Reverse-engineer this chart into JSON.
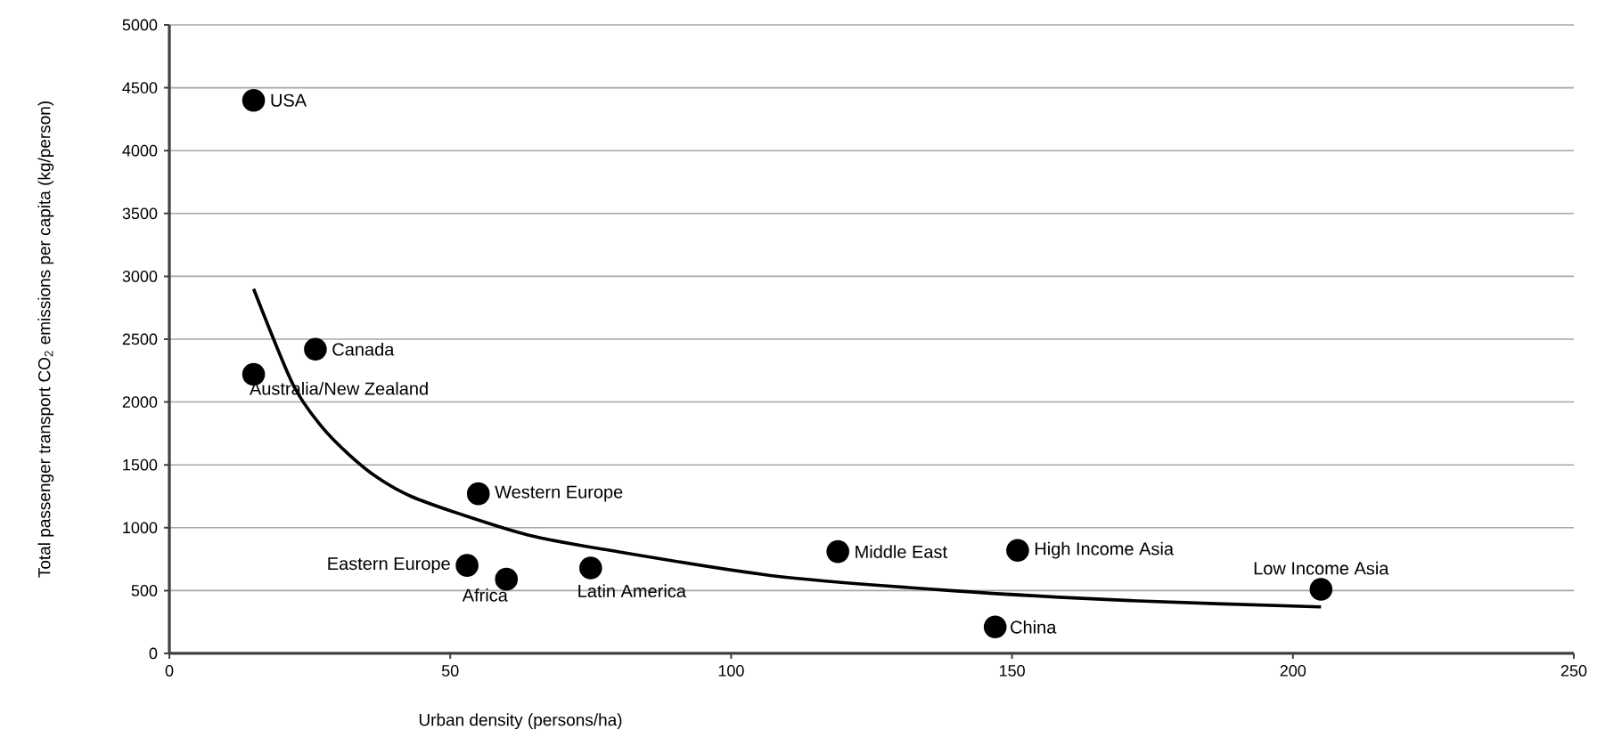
{
  "chart_data": {
    "type": "scatter",
    "xlabel": "Urban density (persons/ha)",
    "ylabel": "Total passenger transport CO$_{2}$ emissions per capita (kg/person)",
    "xlim": [
      0,
      250
    ],
    "xticks": [
      0,
      50,
      100,
      150,
      200,
      250
    ],
    "ylim": [
      0,
      5000
    ],
    "yticks": [
      0,
      500,
      1000,
      1500,
      2000,
      2500,
      3000,
      3500,
      4000,
      4500,
      5000
    ],
    "grid": "y",
    "series": [
      {
        "color": "#000000",
        "marker": "circle",
        "x": [
          15,
          26,
          15,
          55,
          53,
          60,
          75,
          119,
          151,
          147,
          205
        ],
        "values": [
          4400,
          2420,
          2220,
          1270,
          700,
          590,
          680,
          810,
          820,
          210,
          510
        ]
      },
      {
        "type": "line",
        "color": "#000000",
        "marker": "none",
        "x": [
          15,
          22,
          27,
          32,
          37,
          43,
          53,
          64,
          77,
          107,
          139,
          171,
          205
        ],
        "values": [
          2900,
          2140,
          1810,
          1580,
          1400,
          1250,
          1090,
          940,
          830,
          620,
          500,
          420,
          370
        ]
      }
    ],
    "annotations": [
      {
        "text": "USA",
        "x": 15,
        "y": 4400
      },
      {
        "text": "Canada",
        "x": 26,
        "y": 2420
      },
      {
        "text": "Australia/New Zealand",
        "x": 15,
        "y": 2220
      },
      {
        "text": "Western Europe",
        "x": 55,
        "y": 1270
      },
      {
        "text": "Eastern Europe",
        "x": 53,
        "y": 700
      },
      {
        "text": "Africa",
        "x": 60,
        "y": 590
      },
      {
        "text": "Latin America",
        "x": 75,
        "y": 680
      },
      {
        "text": "Middle East",
        "x": 119,
        "y": 810
      },
      {
        "text": "High Income Asia",
        "x": 151,
        "y": 820
      },
      {
        "text": "China",
        "x": 147,
        "y": 210
      },
      {
        "text": "Low Income Asia",
        "x": 205,
        "y": 510
      }
    ]
  }
}
